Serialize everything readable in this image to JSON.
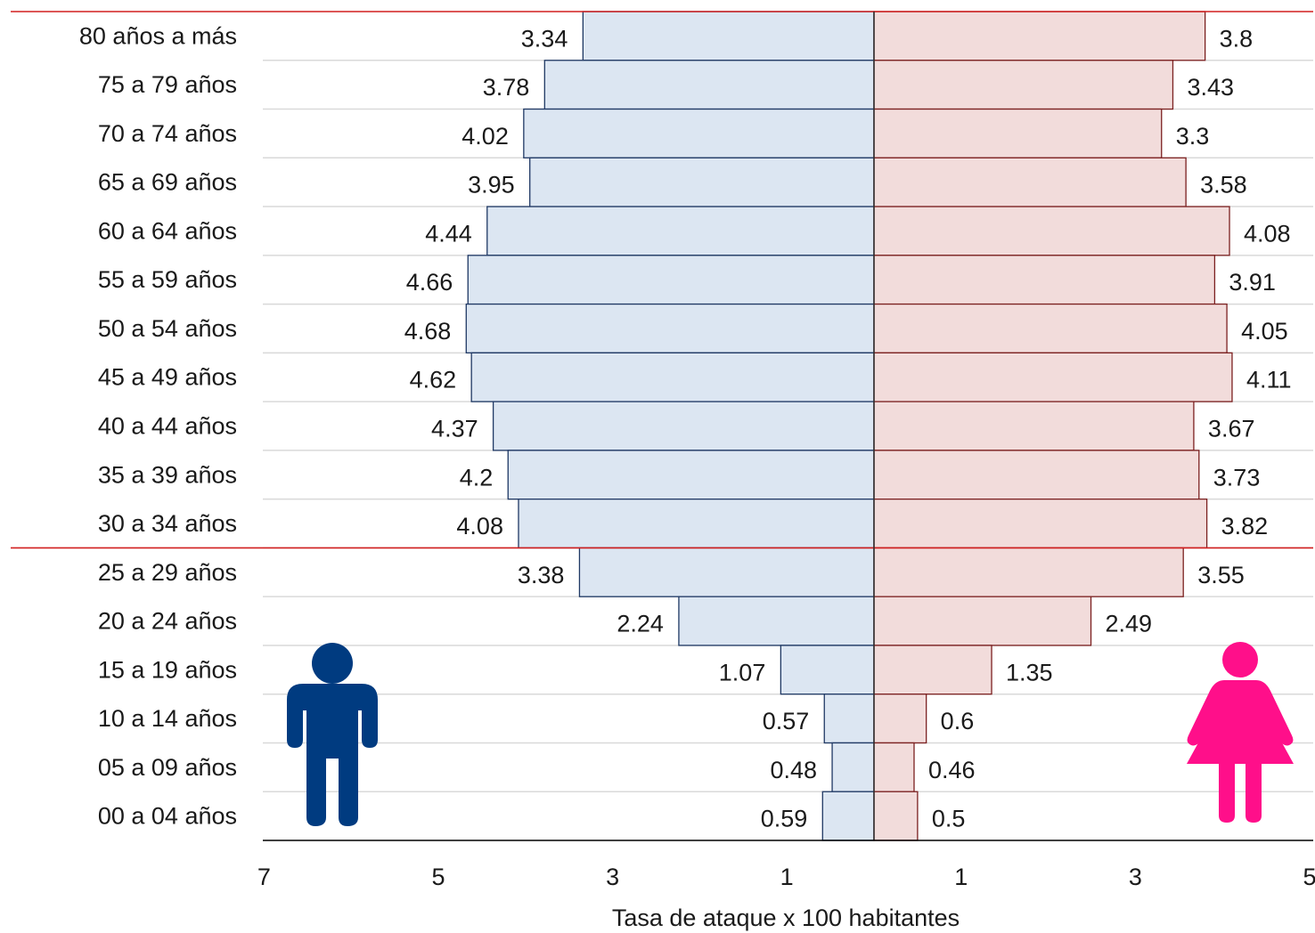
{
  "chart_data": {
    "type": "bar",
    "orientation": "horizontal",
    "layout": "population-pyramid",
    "categories": [
      "80 años a más",
      "75 a 79 años",
      "70 a 74 años",
      "65 a 69 años",
      "60 a 64 años",
      "55 a 59 años",
      "50 a 54 años",
      "45 a 49 años",
      "40 a 44 años",
      "35 a 39 años",
      "30 a 34 años",
      "25 a 29 años",
      "20 a 24 años",
      "15 a 19 años",
      "10 a 14 años",
      "05 a 09 años",
      "00 a 04 años"
    ],
    "series": [
      {
        "side": "left",
        "values": [
          3.34,
          3.78,
          4.02,
          3.95,
          4.44,
          4.66,
          4.68,
          4.62,
          4.37,
          4.2,
          4.08,
          3.38,
          2.24,
          1.07,
          0.57,
          0.48,
          0.59
        ],
        "value_labels": [
          "3.34",
          "3.78",
          "4.02",
          "3.95",
          "4.44",
          "4.66",
          "4.68",
          "4.62",
          "4.37",
          "4.2",
          "4.08",
          "3.38",
          "2.24",
          "1.07",
          "0.57",
          "0.48",
          "0.59"
        ],
        "fill": "#dce6f2",
        "stroke": "#1f3864",
        "icon": "male-icon",
        "icon_color": "#003b80"
      },
      {
        "side": "right",
        "values": [
          3.8,
          3.43,
          3.3,
          3.58,
          4.08,
          3.91,
          4.05,
          4.11,
          3.67,
          3.73,
          3.82,
          3.55,
          2.49,
          1.35,
          0.6,
          0.46,
          0.5
        ],
        "value_labels": [
          "3.8",
          "3.43",
          "3.3",
          "3.58",
          "4.08",
          "3.91",
          "4.05",
          "4.11",
          "3.67",
          "3.73",
          "3.82",
          "3.55",
          "2.49",
          "1.35",
          "0.6",
          "0.46",
          "0.5"
        ],
        "fill": "#f2dcdb",
        "stroke": "#7b2020",
        "icon": "female-icon",
        "icon_color": "#ff0f8a"
      }
    ],
    "x_ticks": [
      "7",
      "5",
      "3",
      "1",
      "1",
      "3",
      "5"
    ],
    "xlim_left": [
      0,
      7
    ],
    "xlim_right": [
      0,
      5
    ],
    "xlabel": "Tasa de ataque x 100 habitantes",
    "ylabel": "",
    "title": "",
    "grid": "horizontal",
    "highlight_lines_above": [
      "80 años a más",
      "25 a 29 años"
    ],
    "highlight_color": "#d21f1f",
    "grid_color": "#d9d9d9",
    "axis_color": "#000000"
  }
}
